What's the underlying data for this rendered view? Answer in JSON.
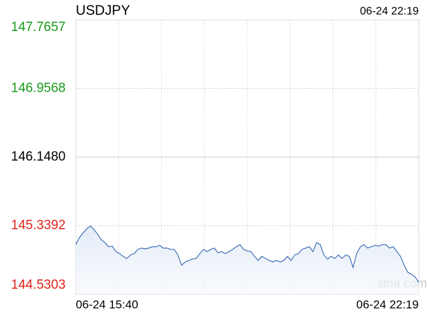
{
  "chart_data": {
    "type": "line",
    "title": "USDJPY",
    "timestamp": "06-24 22:19",
    "watermark": "sina.com",
    "categories": [
      "06-24 15:40",
      null,
      null,
      null,
      null,
      null,
      null,
      null,
      null,
      null,
      null,
      null,
      null,
      null,
      null,
      null,
      null,
      null,
      null,
      null,
      null,
      null,
      null,
      null,
      null,
      null,
      null,
      null,
      null,
      null,
      null,
      null,
      null,
      null,
      null,
      null,
      null,
      null,
      null,
      null,
      null,
      null,
      null,
      null,
      null,
      null,
      null,
      null,
      null,
      null,
      null,
      null,
      null,
      null,
      null,
      null,
      null,
      null,
      null,
      null,
      null,
      null,
      null,
      null,
      null,
      null,
      null,
      null,
      null,
      null,
      null,
      null,
      null,
      null,
      null,
      null,
      null,
      null,
      null,
      null,
      null,
      null,
      null,
      null,
      null,
      null,
      null,
      null,
      null,
      null,
      null,
      null,
      null,
      null,
      "06-24 22:19"
    ],
    "values": [
      145.116,
      145.197,
      145.254,
      145.303,
      145.335,
      145.294,
      145.238,
      145.173,
      145.14,
      145.091,
      145.099,
      145.034,
      145.01,
      144.977,
      144.953,
      144.994,
      145.01,
      145.059,
      145.075,
      145.067,
      145.075,
      145.091,
      145.091,
      145.107,
      145.075,
      145.075,
      145.059,
      145.059,
      144.994,
      144.872,
      144.912,
      144.929,
      144.945,
      144.953,
      145.01,
      145.059,
      145.034,
      145.059,
      145.075,
      145.018,
      145.034,
      145.01,
      145.034,
      145.059,
      145.091,
      145.116,
      145.059,
      145.042,
      145.034,
      144.977,
      144.929,
      144.977,
      144.953,
      144.929,
      144.912,
      144.929,
      144.912,
      144.929,
      144.977,
      144.929,
      144.994,
      145.01,
      145.059,
      145.075,
      145.091,
      145.034,
      145.14,
      145.116,
      144.994,
      144.945,
      144.977,
      144.953,
      144.994,
      144.953,
      144.994,
      144.977,
      144.847,
      145.01,
      145.091,
      145.116,
      145.075,
      145.091,
      145.107,
      145.099,
      145.116,
      145.116,
      145.075,
      145.091,
      145.034,
      144.977,
      144.872,
      144.79,
      144.766,
      144.734,
      144.668
    ],
    "color": "#3f6fb5",
    "ylim": [
      144.5303,
      147.7657
    ],
    "yticks": [
      147.7657,
      146.9568,
      {
        "value": 146.148,
        "label": "146.1480"
      },
      145.3392,
      144.5303
    ],
    "tick_colors": [
      "#1a9a1a",
      "#1a9a1a",
      "#000000",
      "#e2231a",
      "#e2231a"
    ],
    "grid": true
  }
}
